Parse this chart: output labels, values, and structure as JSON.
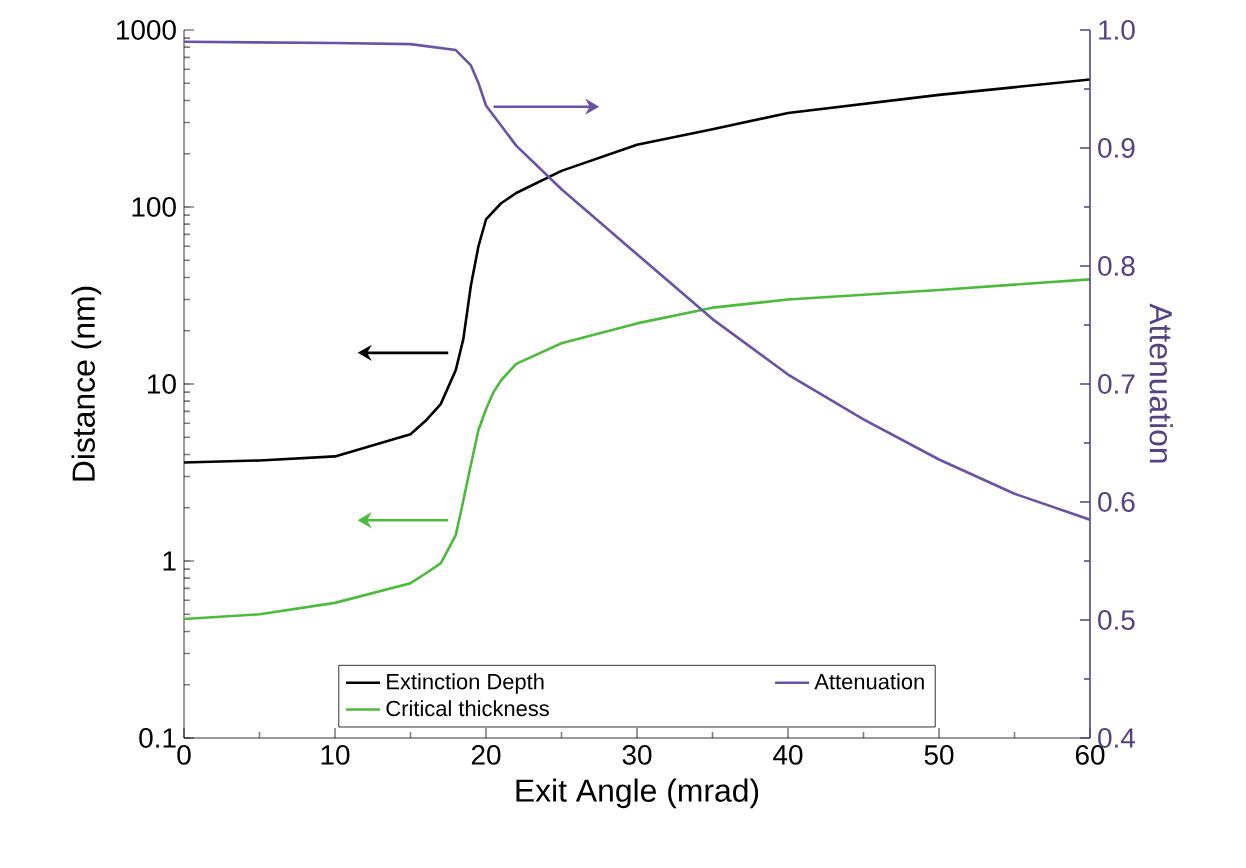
{
  "chart_data": {
    "type": "line",
    "xlabel": "Exit Angle (mrad)",
    "ylabel": "Distance (nm)",
    "y2label": "Attenuation",
    "xlim": [
      0,
      60
    ],
    "xticks": [
      0,
      10,
      20,
      30,
      40,
      50,
      60
    ],
    "ylim": [
      0.1,
      1000
    ],
    "yticks": [
      0.1,
      1,
      10,
      100,
      1000
    ],
    "y2lim": [
      0.4,
      1.0
    ],
    "y2ticks": [
      {
        "value": 0.4,
        "label": "0.4"
      },
      0.5,
      0.6,
      0.7,
      0.8,
      0.9,
      {
        "value": 1.0,
        "label": "1.0"
      }
    ],
    "log": "y",
    "legend": "bottom",
    "series": [
      {
        "name": "Extinction Depth",
        "color": "#000000",
        "x": [
          0,
          5,
          10,
          15,
          16,
          17,
          18,
          18.5,
          19,
          19.5,
          20,
          21,
          22,
          25,
          30,
          35,
          40,
          50,
          60
        ],
        "values": [
          3.6,
          3.7,
          3.9,
          5.2,
          6.2,
          7.7,
          12,
          18,
          36,
          60,
          85,
          105,
          120,
          160,
          225,
          275,
          340,
          430,
          525
        ]
      },
      {
        "name": "Critical thickness",
        "color": "#4cbb3c",
        "x": [
          0,
          5,
          10,
          15,
          16,
          17,
          18,
          18.5,
          19,
          19.5,
          20,
          20.5,
          21,
          22,
          25,
          30,
          35,
          40,
          50,
          60
        ],
        "values": [
          0.47,
          0.5,
          0.58,
          0.75,
          0.85,
          0.97,
          1.4,
          2.2,
          3.5,
          5.5,
          7.2,
          9,
          10.5,
          13,
          17,
          22,
          27,
          30,
          34,
          39
        ]
      },
      {
        "name": "Attenuation",
        "color": "#6a52a5",
        "axis": "y2",
        "x": [
          0,
          10,
          15,
          18,
          19,
          19.5,
          20,
          22,
          25,
          30,
          35,
          40,
          45,
          50,
          55,
          60
        ],
        "values": [
          0.99,
          0.989,
          0.988,
          0.983,
          0.97,
          0.955,
          0.936,
          0.902,
          0.865,
          0.81,
          0.755,
          0.708,
          0.67,
          0.636,
          0.607,
          0.585
        ]
      }
    ]
  }
}
